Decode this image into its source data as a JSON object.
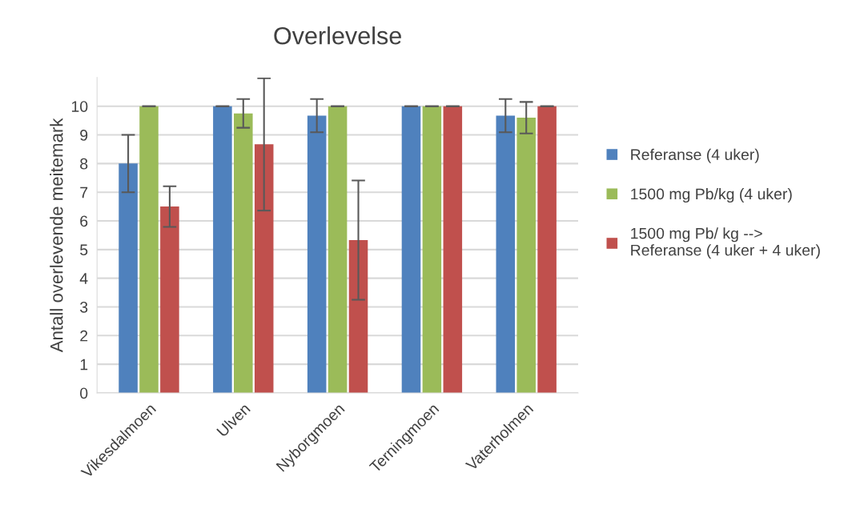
{
  "chart_data": {
    "type": "bar",
    "title": "Overlevelse",
    "ylabel": "Antall overlevende meitemark",
    "categories": [
      "Vikesdalmoen",
      "Ulven",
      "Nyborgmoen",
      "Terningmoen",
      "Vaterholmen"
    ],
    "series": [
      {
        "name": "Referanse (4 uker)",
        "color": "#4f81bd",
        "values": [
          8,
          10,
          9.67,
          10,
          9.67
        ],
        "errors": [
          1,
          0,
          0.58,
          0,
          0.58
        ]
      },
      {
        "name": "1500 mg Pb/kg (4 uker)",
        "color": "#9bbb59",
        "values": [
          10,
          9.75,
          10,
          10,
          9.6
        ],
        "errors": [
          0,
          0.5,
          0,
          0,
          0.55
        ]
      },
      {
        "name": "1500 mg Pb/ kg -->\nReferanse (4 uker + 4 uker)",
        "color": "#c0504d",
        "values": [
          6.5,
          8.67,
          5.33,
          10,
          10
        ],
        "errors": [
          0.71,
          2.31,
          2.08,
          0,
          0
        ]
      }
    ],
    "ylim": [
      0,
      11
    ],
    "yticks": [
      0,
      1,
      2,
      3,
      4,
      5,
      6,
      7,
      8,
      9,
      10
    ],
    "grid": "y",
    "legend": "right"
  }
}
